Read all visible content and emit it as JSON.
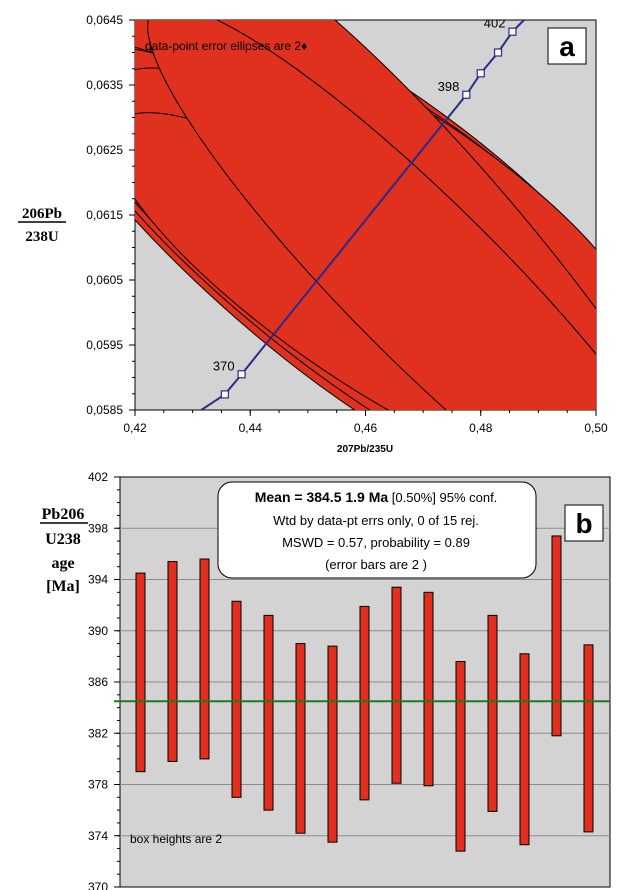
{
  "chart_data": [
    {
      "type": "scatter",
      "panel_label": "a",
      "xlabel": "207Pb/235U",
      "ylabel_top": "206Pb",
      "ylabel_bottom": "238U",
      "xlim": [
        0.42,
        0.5
      ],
      "ylim": [
        0.0585,
        0.0645
      ],
      "x_tick_labels": [
        "0,42",
        "0,44",
        "0,46",
        "0,48",
        "0,50"
      ],
      "y_tick_labels": [
        "0,0585",
        "0,0595",
        "0,0605",
        "0,0615",
        "0,0625",
        "0,0635",
        "0,0645"
      ],
      "x_ticks": [
        0.42,
        0.44,
        0.46,
        0.48,
        0.5
      ],
      "y_ticks": [
        0.0585,
        0.0595,
        0.0605,
        0.0615,
        0.0625,
        0.0635,
        0.0645
      ],
      "annotation": "data-point error ellipses are 2♦",
      "concordia": {
        "points": [
          [
            0.4315,
            0.0585
          ],
          [
            0.4356,
            0.05874
          ],
          [
            0.4385,
            0.05905
          ],
          [
            0.4775,
            0.06335
          ],
          [
            0.48,
            0.06368
          ],
          [
            0.483,
            0.064
          ],
          [
            0.4855,
            0.06432
          ],
          [
            0.4875,
            0.0645
          ]
        ],
        "markers": [
          [
            0.4356,
            0.05874
          ],
          [
            0.4385,
            0.05905
          ],
          [
            0.4775,
            0.06335
          ],
          [
            0.48,
            0.06368
          ],
          [
            0.483,
            0.064
          ],
          [
            0.4855,
            0.06432
          ]
        ],
        "labels": [
          {
            "text": "370",
            "x": 0.4385,
            "y": 0.05905
          },
          {
            "text": "398",
            "x": 0.4775,
            "y": 0.06335
          },
          {
            "text": "402",
            "x": 0.4855,
            "y": 0.06432
          }
        ]
      },
      "ellipses": [
        {
          "x": 0.446,
          "y": 0.0612,
          "rx": 0.0165,
          "ry": 0.0055,
          "rot": -48
        },
        {
          "x": 0.449,
          "y": 0.0615,
          "rx": 0.0175,
          "ry": 0.0062,
          "rot": -48
        },
        {
          "x": 0.452,
          "y": 0.0618,
          "rx": 0.018,
          "ry": 0.0065,
          "rot": -50
        },
        {
          "x": 0.455,
          "y": 0.062,
          "rx": 0.0175,
          "ry": 0.006,
          "rot": -52
        },
        {
          "x": 0.458,
          "y": 0.0621,
          "rx": 0.017,
          "ry": 0.0055,
          "rot": -54
        },
        {
          "x": 0.461,
          "y": 0.06215,
          "rx": 0.0155,
          "ry": 0.005,
          "rot": -55
        },
        {
          "x": 0.463,
          "y": 0.06205,
          "rx": 0.0145,
          "ry": 0.0047,
          "rot": -56
        },
        {
          "x": 0.465,
          "y": 0.06195,
          "rx": 0.014,
          "ry": 0.0044,
          "rot": -57
        },
        {
          "x": 0.456,
          "y": 0.0606,
          "rx": 0.0165,
          "ry": 0.0055,
          "rot": -52
        },
        {
          "x": 0.459,
          "y": 0.0605,
          "rx": 0.016,
          "ry": 0.0053,
          "rot": -54
        },
        {
          "x": 0.454,
          "y": 0.061,
          "rx": 0.015,
          "ry": 0.0048,
          "rot": -53
        },
        {
          "x": 0.461,
          "y": 0.0608,
          "rx": 0.015,
          "ry": 0.0048,
          "rot": -55
        },
        {
          "x": 0.458,
          "y": 0.0603,
          "rx": 0.014,
          "ry": 0.0045,
          "rot": -55
        },
        {
          "x": 0.476,
          "y": 0.06075,
          "rx": 0.014,
          "ry": 0.0065,
          "rot": -40
        },
        {
          "x": 0.471,
          "y": 0.0604,
          "rx": 0.0135,
          "ry": 0.006,
          "rot": -45
        }
      ]
    },
    {
      "type": "bar",
      "panel_label": "b",
      "ylabel_lines": [
        "Pb206",
        "U238",
        "age",
        "[Ma]"
      ],
      "ylim": [
        370,
        402
      ],
      "y_tick_labels": [
        "370",
        "374",
        "378",
        "382",
        "386",
        "390",
        "394",
        "398",
        "402"
      ],
      "y_ticks": [
        370,
        374,
        378,
        382,
        386,
        390,
        394,
        398,
        402
      ],
      "mean": 384.5,
      "bars": [
        {
          "low": 379.0,
          "high": 394.5
        },
        {
          "low": 379.8,
          "high": 395.4
        },
        {
          "low": 380.0,
          "high": 395.6
        },
        {
          "low": 377.0,
          "high": 392.3
        },
        {
          "low": 376.0,
          "high": 391.2
        },
        {
          "low": 374.2,
          "high": 389.0
        },
        {
          "low": 373.5,
          "high": 388.8
        },
        {
          "low": 376.8,
          "high": 391.9
        },
        {
          "low": 378.1,
          "high": 393.4
        },
        {
          "low": 377.9,
          "high": 393.0
        },
        {
          "low": 372.8,
          "high": 387.6
        },
        {
          "low": 375.9,
          "high": 391.2
        },
        {
          "low": 373.3,
          "high": 388.2
        },
        {
          "low": 381.8,
          "high": 397.4
        },
        {
          "low": 374.3,
          "high": 388.9
        }
      ],
      "info_box": {
        "line1_bold": "Mean = 384.5  1.9  Ma",
        "line1_rest": " [0.50%]  95% conf.",
        "line2": "Wtd by data-pt errs only, 0 of 15 rej.",
        "line3": "MSWD = 0.57, probability = 0.89",
        "line4": "(error bars are 2   )"
      },
      "annotation": "box heights are 2"
    }
  ]
}
